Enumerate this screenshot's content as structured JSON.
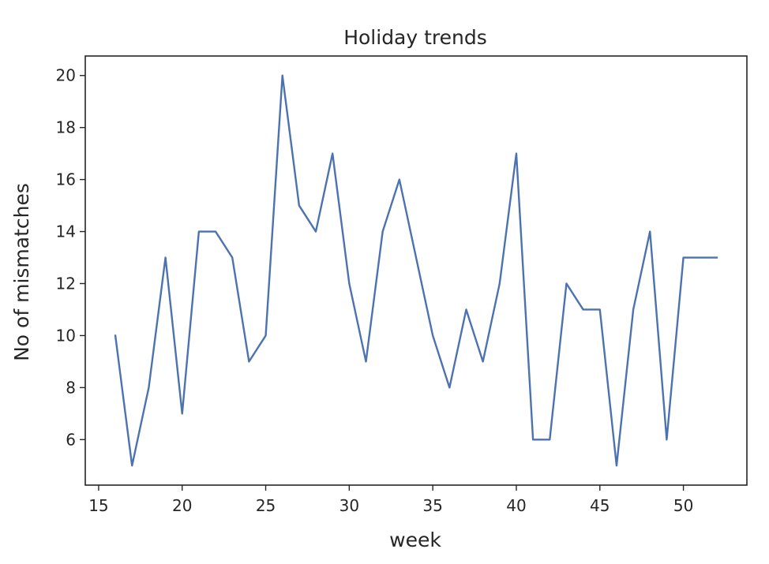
{
  "chart_data": {
    "type": "line",
    "title": "Holiday trends",
    "xlabel": "week",
    "ylabel": "No of mismatches",
    "xlim": [
      14.2,
      53.8
    ],
    "ylim": [
      4.25,
      20.75
    ],
    "xticks": [
      15,
      20,
      25,
      30,
      35,
      40,
      45,
      50
    ],
    "yticks": [
      6,
      8,
      10,
      12,
      14,
      16,
      18,
      20
    ],
    "grid": false,
    "series": [
      {
        "color": "#4c72b0",
        "x": [
          16,
          17,
          18,
          19,
          20,
          21,
          22,
          23,
          24,
          25,
          26,
          27,
          28,
          29,
          30,
          31,
          32,
          33,
          34,
          35,
          36,
          37,
          38,
          39,
          40,
          41,
          42,
          43,
          44,
          45,
          46,
          47,
          48,
          49,
          50,
          51,
          52
        ],
        "y": [
          10,
          5,
          8,
          13,
          7,
          14,
          14,
          13,
          9,
          10,
          20,
          15,
          14,
          17,
          12,
          9,
          14,
          16,
          13,
          10,
          8,
          11,
          9,
          12,
          17,
          6,
          6,
          12,
          11,
          11,
          5,
          11,
          14,
          6,
          13,
          13,
          13
        ]
      }
    ]
  }
}
